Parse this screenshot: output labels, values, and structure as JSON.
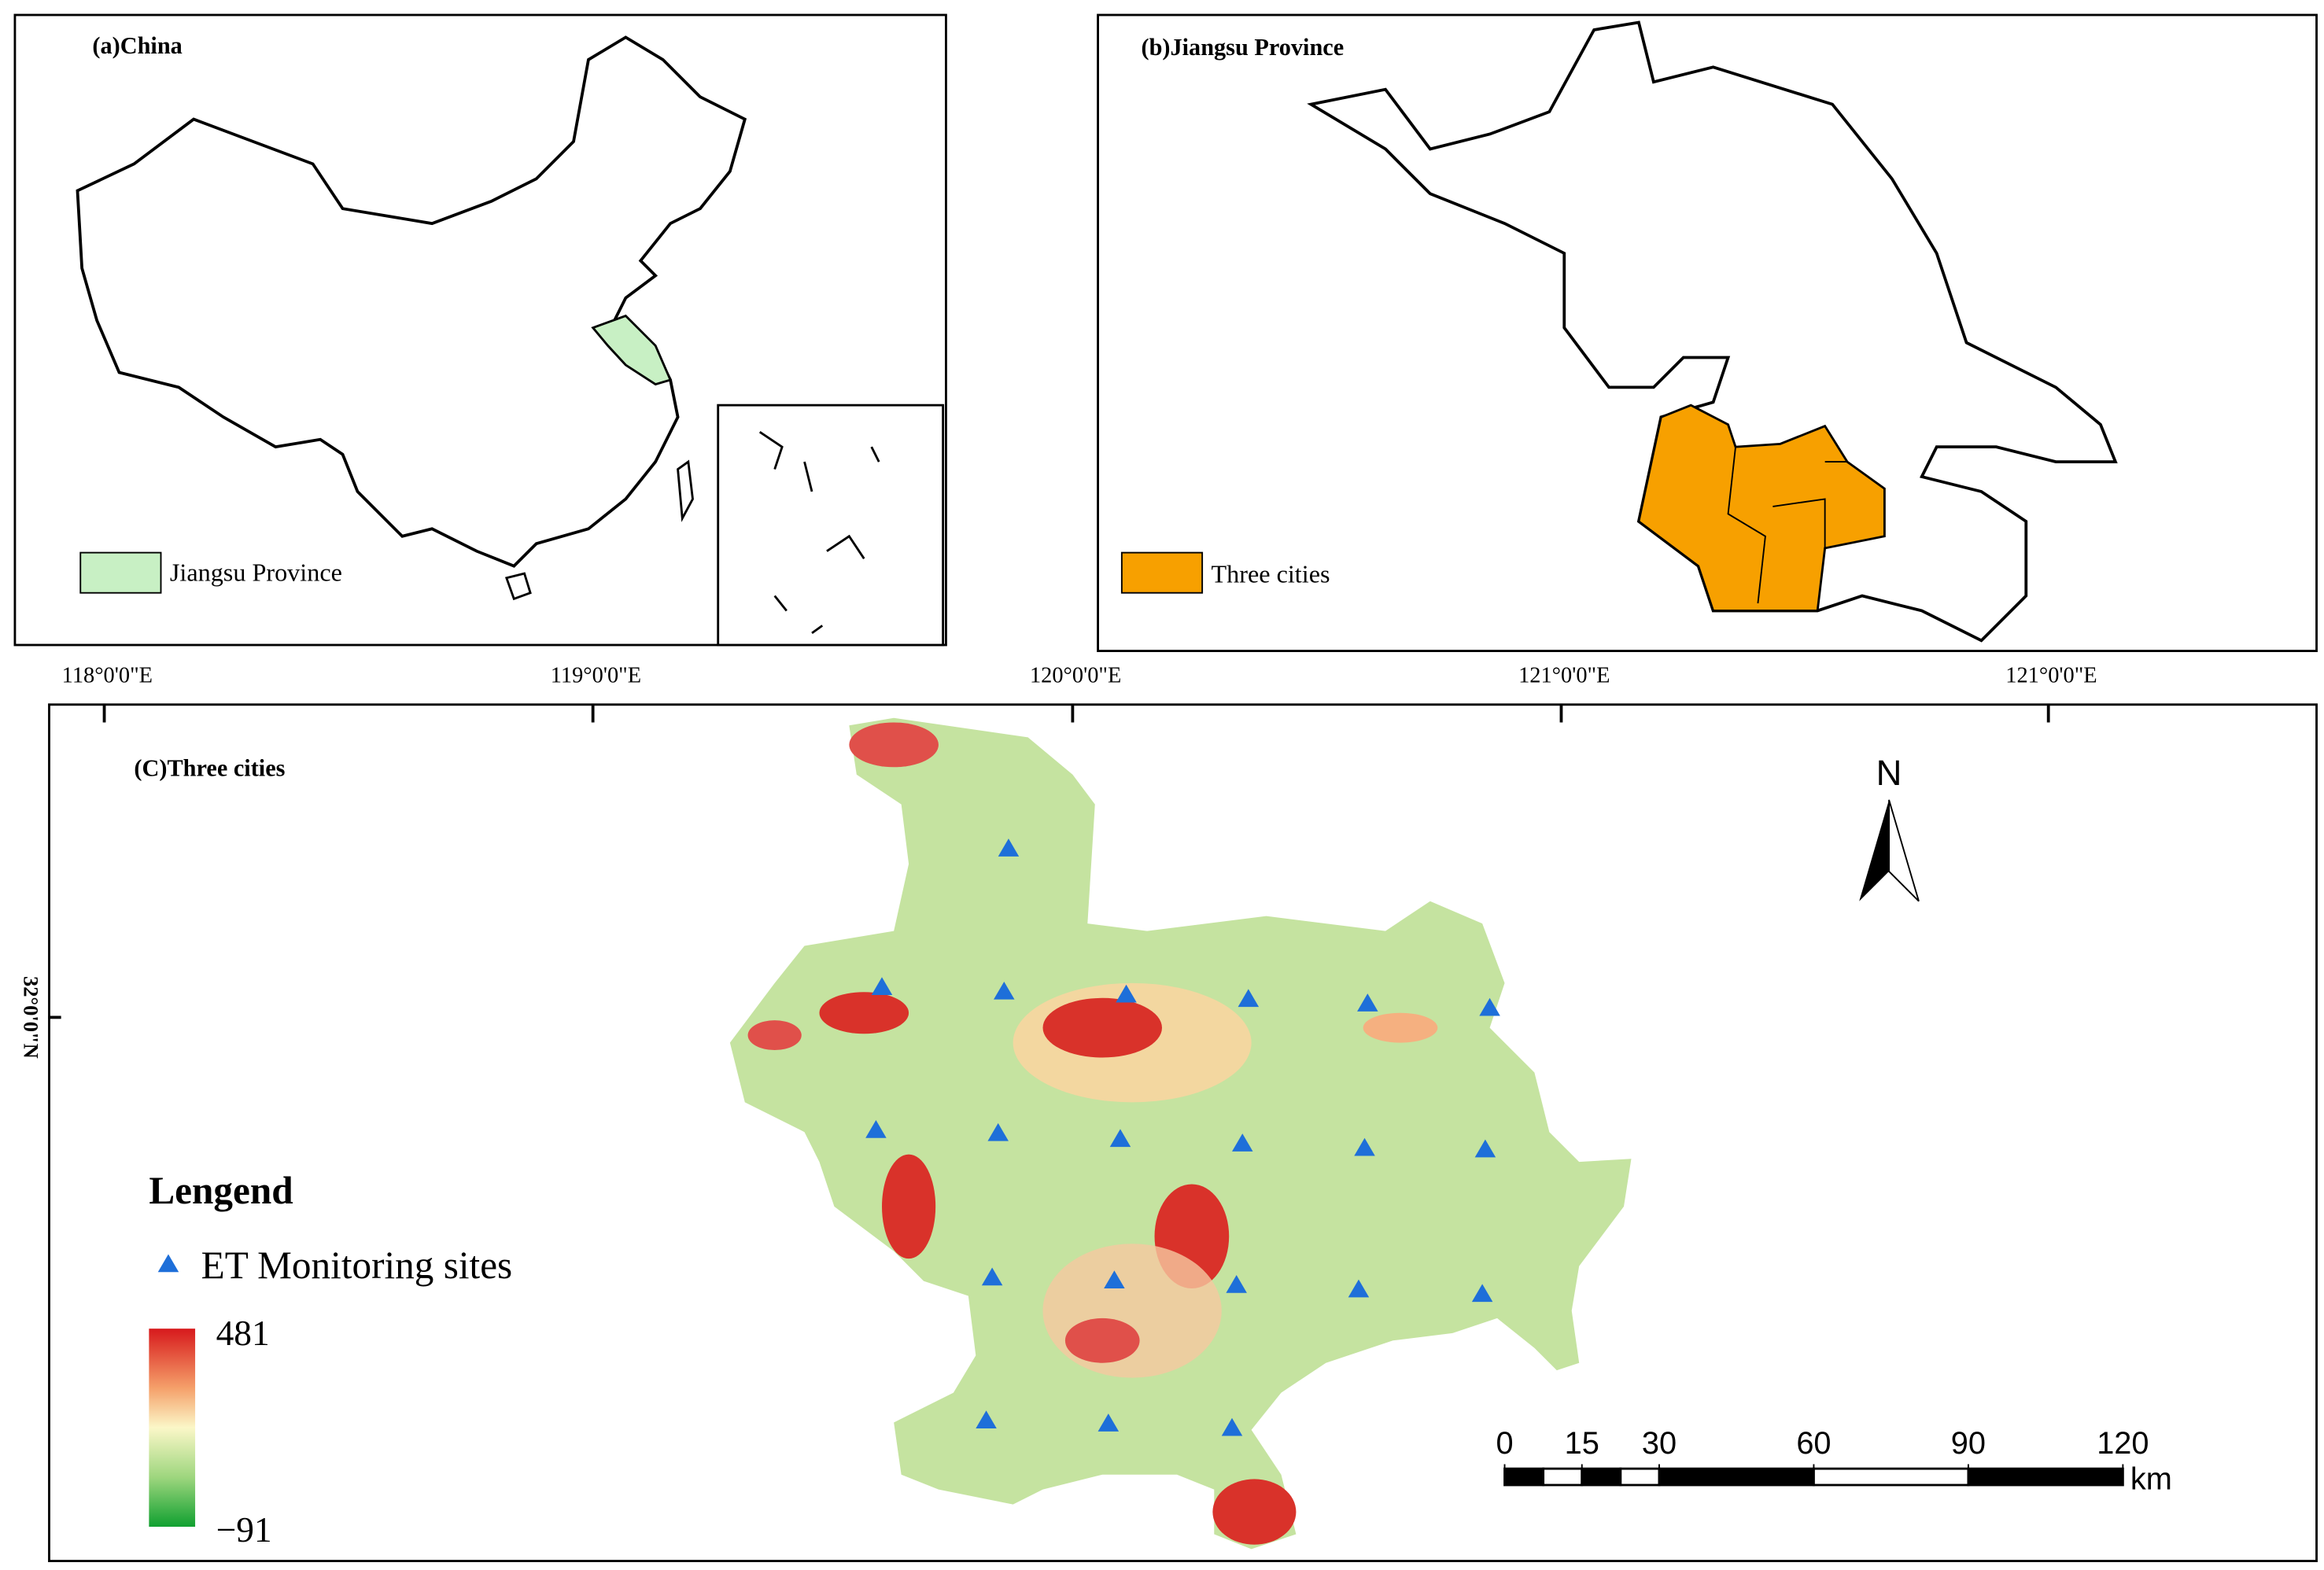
{
  "panels": {
    "a": {
      "title": "(a)China",
      "legend": "Jiangsu Province"
    },
    "b": {
      "title": "(b)Jiangsu Province",
      "legend": "Three cities"
    },
    "c": {
      "title": "(C)Three cities"
    }
  },
  "longitude_labels": [
    "118°0'0\"E",
    "119°0'0\"E",
    "120°0'0\"E",
    "121°0'0\"E",
    "121°0'0\"E"
  ],
  "latitude_label": "32°0'0\"N",
  "north_arrow": "N",
  "legend": {
    "title": "Lengend",
    "sites": "ET Monitoring sites",
    "colorbar_max": "481",
    "colorbar_min": "−91"
  },
  "scale_bar": {
    "ticks": [
      0,
      15,
      30,
      60,
      90,
      120
    ],
    "unit": "km"
  }
}
